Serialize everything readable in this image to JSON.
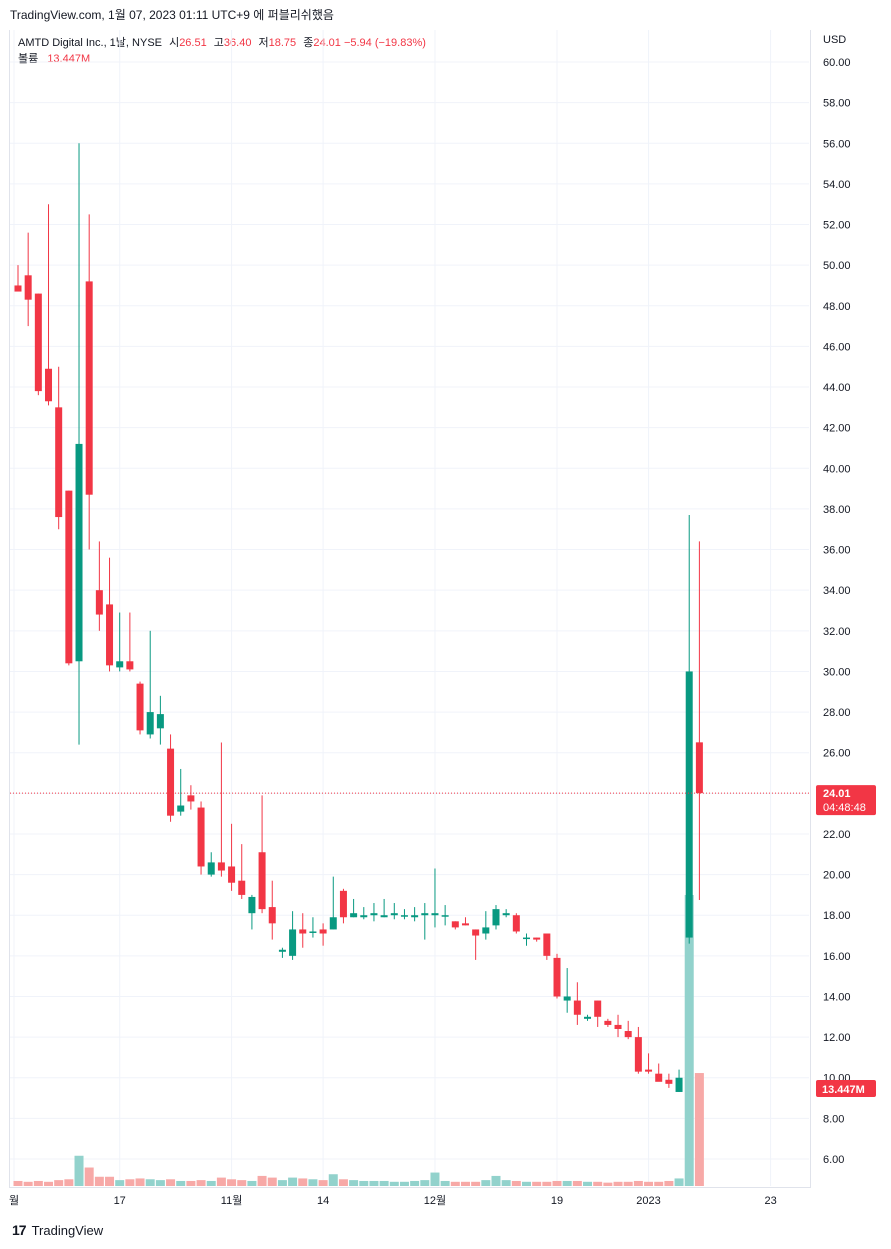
{
  "caption": "TradingView.com, 1월 07, 2023 01:11 UTC+9 에 퍼블리쉬했음",
  "legend": {
    "symbol": "AMTD Digital Inc., 1날, NYSE",
    "open_label": "시",
    "open": "26.51",
    "high_label": "고",
    "high": "36.40",
    "low_label": "저",
    "low": "18.75",
    "close_label": "종",
    "close": "24.01",
    "change": "−5.94 (−19.83%)",
    "volume_label": "볼륨",
    "volume": "13.447M"
  },
  "currency": "USD",
  "price_badge": {
    "price": "24.01",
    "countdown": "04:48:48"
  },
  "volume_badge": "13.447M",
  "footer": {
    "logo": "17",
    "brand": "TradingView"
  },
  "colors": {
    "up": "#089981",
    "down": "#f23645",
    "up_volume": "#92d2cc",
    "down_volume": "#f7a9a7",
    "grid": "#f0f3fa",
    "badge": "#f23645"
  },
  "chart_data": {
    "type": "candlestick",
    "y_ticks": [
      "60.00",
      "58.00",
      "56.00",
      "54.00",
      "52.00",
      "50.00",
      "48.00",
      "46.00",
      "44.00",
      "42.00",
      "40.00",
      "38.00",
      "36.00",
      "34.00",
      "32.00",
      "30.00",
      "28.00",
      "26.00",
      "24.00",
      "22.00",
      "20.00",
      "18.00",
      "16.00",
      "14.00",
      "12.00",
      "10.00",
      "8.00",
      "6.00"
    ],
    "ylim": [
      4.8,
      60.8
    ],
    "x_ticks": [
      {
        "label": "월",
        "bar": 0
      },
      {
        "label": "17",
        "bar": 10
      },
      {
        "label": "11월",
        "bar": 21
      },
      {
        "label": "14",
        "bar": 30
      },
      {
        "label": "12월",
        "bar": 41
      },
      {
        "label": "19",
        "bar": 53
      },
      {
        "label": "2023",
        "bar": 62
      },
      {
        "label": "23",
        "bar": 74
      }
    ],
    "last_price": 24.01,
    "volume_unit": "M",
    "candles": [
      {
        "o": 49.0,
        "h": 50.0,
        "l": 48.8,
        "c": 48.7,
        "v": 0.6
      },
      {
        "o": 49.5,
        "h": 51.6,
        "l": 47.0,
        "c": 48.3,
        "v": 0.5
      },
      {
        "o": 48.6,
        "h": 48.6,
        "l": 43.6,
        "c": 43.8,
        "v": 0.6
      },
      {
        "o": 44.9,
        "h": 53.0,
        "l": 43.1,
        "c": 43.3,
        "v": 0.5
      },
      {
        "o": 43.0,
        "h": 45.0,
        "l": 37.0,
        "c": 37.6,
        "v": 0.7
      },
      {
        "o": 38.9,
        "h": 38.9,
        "l": 30.3,
        "c": 30.4,
        "v": 0.8
      },
      {
        "o": 30.5,
        "h": 56.0,
        "l": 26.4,
        "c": 41.2,
        "v": 3.6
      },
      {
        "o": 49.2,
        "h": 52.5,
        "l": 36.0,
        "c": 38.7,
        "v": 2.2
      },
      {
        "o": 34.0,
        "h": 36.4,
        "l": 32.0,
        "c": 32.8,
        "v": 1.1
      },
      {
        "o": 33.3,
        "h": 35.6,
        "l": 30.0,
        "c": 30.3,
        "v": 1.1
      },
      {
        "o": 30.2,
        "h": 32.9,
        "l": 30.0,
        "c": 30.5,
        "v": 0.7
      },
      {
        "o": 30.5,
        "h": 32.9,
        "l": 30.0,
        "c": 30.1,
        "v": 0.8
      },
      {
        "o": 29.4,
        "h": 29.5,
        "l": 26.9,
        "c": 27.1,
        "v": 0.9
      },
      {
        "o": 26.9,
        "h": 32.0,
        "l": 26.7,
        "c": 28.0,
        "v": 0.8
      },
      {
        "o": 27.2,
        "h": 28.8,
        "l": 26.4,
        "c": 27.9,
        "v": 0.7
      },
      {
        "o": 26.2,
        "h": 26.9,
        "l": 22.6,
        "c": 22.9,
        "v": 0.8
      },
      {
        "o": 23.1,
        "h": 25.2,
        "l": 22.9,
        "c": 23.4,
        "v": 0.6
      },
      {
        "o": 23.9,
        "h": 24.4,
        "l": 23.2,
        "c": 23.6,
        "v": 0.6
      },
      {
        "o": 23.3,
        "h": 23.6,
        "l": 20.0,
        "c": 20.4,
        "v": 0.7
      },
      {
        "o": 20.0,
        "h": 21.1,
        "l": 19.9,
        "c": 20.6,
        "v": 0.6
      },
      {
        "o": 20.6,
        "h": 26.5,
        "l": 19.9,
        "c": 20.2,
        "v": 1.0
      },
      {
        "o": 20.4,
        "h": 22.5,
        "l": 19.2,
        "c": 19.6,
        "v": 0.8
      },
      {
        "o": 19.7,
        "h": 21.5,
        "l": 18.8,
        "c": 19.0,
        "v": 0.7
      },
      {
        "o": 18.1,
        "h": 19.0,
        "l": 17.3,
        "c": 18.9,
        "v": 0.6
      },
      {
        "o": 21.1,
        "h": 23.9,
        "l": 18.1,
        "c": 18.3,
        "v": 1.2
      },
      {
        "o": 18.4,
        "h": 19.7,
        "l": 16.8,
        "c": 17.6,
        "v": 1.0
      },
      {
        "o": 16.2,
        "h": 16.4,
        "l": 15.9,
        "c": 16.3,
        "v": 0.7
      },
      {
        "o": 16.0,
        "h": 18.2,
        "l": 15.8,
        "c": 17.3,
        "v": 1.0
      },
      {
        "o": 17.3,
        "h": 18.1,
        "l": 16.4,
        "c": 17.1,
        "v": 0.9
      },
      {
        "o": 17.2,
        "h": 17.9,
        "l": 16.9,
        "c": 17.2,
        "v": 0.8
      },
      {
        "o": 17.3,
        "h": 17.6,
        "l": 16.5,
        "c": 17.1,
        "v": 0.7
      },
      {
        "o": 17.3,
        "h": 19.9,
        "l": 17.3,
        "c": 17.9,
        "v": 1.4
      },
      {
        "o": 19.2,
        "h": 19.3,
        "l": 17.6,
        "c": 17.9,
        "v": 0.8
      },
      {
        "o": 17.9,
        "h": 18.8,
        "l": 17.9,
        "c": 18.1,
        "v": 0.7
      },
      {
        "o": 17.9,
        "h": 18.4,
        "l": 17.8,
        "c": 18.0,
        "v": 0.6
      },
      {
        "o": 18.0,
        "h": 18.6,
        "l": 17.7,
        "c": 18.1,
        "v": 0.6
      },
      {
        "o": 17.9,
        "h": 18.8,
        "l": 17.9,
        "c": 18.0,
        "v": 0.6
      },
      {
        "o": 18.0,
        "h": 18.6,
        "l": 17.8,
        "c": 18.1,
        "v": 0.5
      },
      {
        "o": 18.0,
        "h": 18.3,
        "l": 17.8,
        "c": 18.0,
        "v": 0.5
      },
      {
        "o": 17.9,
        "h": 18.4,
        "l": 17.7,
        "c": 18.0,
        "v": 0.6
      },
      {
        "o": 18.0,
        "h": 18.6,
        "l": 16.8,
        "c": 18.1,
        "v": 0.7
      },
      {
        "o": 18.0,
        "h": 20.3,
        "l": 17.4,
        "c": 18.1,
        "v": 1.6
      },
      {
        "o": 18.0,
        "h": 18.5,
        "l": 17.5,
        "c": 18.0,
        "v": 0.6
      },
      {
        "o": 17.7,
        "h": 17.7,
        "l": 17.3,
        "c": 17.4,
        "v": 0.5
      },
      {
        "o": 17.6,
        "h": 17.9,
        "l": 17.5,
        "c": 17.5,
        "v": 0.5
      },
      {
        "o": 17.3,
        "h": 17.3,
        "l": 15.8,
        "c": 17.0,
        "v": 0.5
      },
      {
        "o": 17.1,
        "h": 18.2,
        "l": 16.8,
        "c": 17.4,
        "v": 0.7
      },
      {
        "o": 17.5,
        "h": 18.5,
        "l": 17.3,
        "c": 18.3,
        "v": 1.2
      },
      {
        "o": 18.0,
        "h": 18.3,
        "l": 17.9,
        "c": 18.1,
        "v": 0.7
      },
      {
        "o": 18.0,
        "h": 18.1,
        "l": 17.1,
        "c": 17.2,
        "v": 0.6
      },
      {
        "o": 16.9,
        "h": 17.1,
        "l": 16.5,
        "c": 16.9,
        "v": 0.5
      },
      {
        "o": 16.9,
        "h": 16.9,
        "l": 16.7,
        "c": 16.8,
        "v": 0.5
      },
      {
        "o": 17.1,
        "h": 17.1,
        "l": 15.8,
        "c": 16.0,
        "v": 0.5
      },
      {
        "o": 15.9,
        "h": 16.1,
        "l": 13.9,
        "c": 14.0,
        "v": 0.6
      },
      {
        "o": 13.8,
        "h": 15.4,
        "l": 13.2,
        "c": 14.0,
        "v": 0.6
      },
      {
        "o": 13.8,
        "h": 14.7,
        "l": 12.6,
        "c": 13.1,
        "v": 0.6
      },
      {
        "o": 12.9,
        "h": 13.1,
        "l": 12.8,
        "c": 13.0,
        "v": 0.5
      },
      {
        "o": 13.8,
        "h": 13.8,
        "l": 12.5,
        "c": 13.0,
        "v": 0.5
      },
      {
        "o": 12.8,
        "h": 12.9,
        "l": 12.5,
        "c": 12.6,
        "v": 0.4
      },
      {
        "o": 12.6,
        "h": 13.1,
        "l": 12.0,
        "c": 12.4,
        "v": 0.5
      },
      {
        "o": 12.3,
        "h": 12.8,
        "l": 11.9,
        "c": 12.0,
        "v": 0.5
      },
      {
        "o": 12.0,
        "h": 12.5,
        "l": 10.2,
        "c": 10.3,
        "v": 0.6
      },
      {
        "o": 10.4,
        "h": 11.2,
        "l": 10.2,
        "c": 10.3,
        "v": 0.5
      },
      {
        "o": 10.2,
        "h": 10.7,
        "l": 9.9,
        "c": 9.8,
        "v": 0.5
      },
      {
        "o": 9.9,
        "h": 10.2,
        "l": 9.5,
        "c": 9.7,
        "v": 0.6
      },
      {
        "o": 9.3,
        "h": 10.4,
        "l": 9.3,
        "c": 10.0,
        "v": 0.9
      },
      {
        "o": 16.9,
        "h": 37.7,
        "l": 16.6,
        "c": 30.0,
        "v": 68.0
      },
      {
        "o": 26.51,
        "h": 36.4,
        "l": 18.75,
        "c": 24.01,
        "v": 13.447
      }
    ]
  }
}
